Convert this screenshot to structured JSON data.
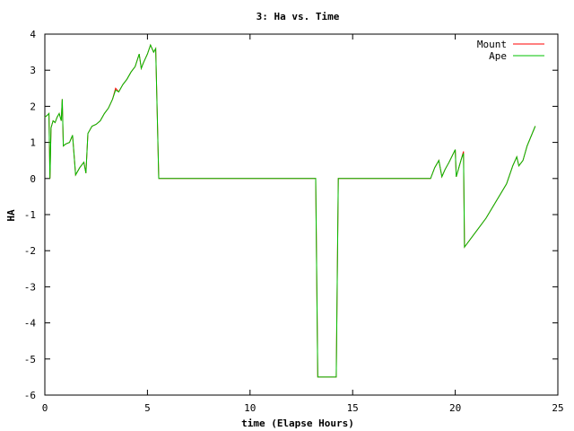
{
  "chart_data": {
    "type": "line",
    "title": "3: Ha vs. Time",
    "xlabel": "time (Elapse Hours)",
    "ylabel": "HA",
    "xlim": [
      0,
      25
    ],
    "ylim": [
      -6,
      4
    ],
    "xticks": [
      0,
      5,
      10,
      15,
      20,
      25
    ],
    "yticks": [
      4,
      3,
      2,
      1,
      0,
      -1,
      -2,
      -3,
      -4,
      -5,
      -6
    ],
    "grid": false,
    "legend_position": "top-right",
    "series": [
      {
        "name": "Mount",
        "color": "#ff0000",
        "points": [
          [
            0.0,
            1.7
          ],
          [
            0.12,
            1.75
          ],
          [
            0.2,
            1.8
          ],
          [
            0.25,
            0.0
          ],
          [
            0.3,
            1.4
          ],
          [
            0.35,
            1.5
          ],
          [
            0.4,
            1.6
          ],
          [
            0.5,
            1.55
          ],
          [
            0.6,
            1.7
          ],
          [
            0.7,
            1.8
          ],
          [
            0.8,
            1.6
          ],
          [
            0.85,
            2.2
          ],
          [
            0.9,
            0.9
          ],
          [
            1.0,
            0.95
          ],
          [
            1.2,
            1.0
          ],
          [
            1.35,
            1.2
          ],
          [
            1.5,
            0.1
          ],
          [
            1.7,
            0.3
          ],
          [
            1.9,
            0.45
          ],
          [
            2.0,
            0.15
          ],
          [
            2.1,
            1.25
          ],
          [
            2.3,
            1.45
          ],
          [
            2.5,
            1.5
          ],
          [
            2.7,
            1.6
          ],
          [
            2.9,
            1.8
          ],
          [
            3.1,
            1.95
          ],
          [
            3.3,
            2.2
          ],
          [
            3.45,
            2.5
          ],
          [
            3.6,
            2.4
          ],
          [
            3.8,
            2.6
          ],
          [
            4.0,
            2.75
          ],
          [
            4.2,
            2.95
          ],
          [
            4.4,
            3.1
          ],
          [
            4.6,
            3.45
          ],
          [
            4.7,
            3.05
          ],
          [
            4.8,
            3.2
          ],
          [
            5.0,
            3.45
          ],
          [
            5.15,
            3.7
          ],
          [
            5.3,
            3.5
          ],
          [
            5.4,
            3.6
          ],
          [
            5.55,
            0.0
          ],
          [
            13.2,
            0.0
          ],
          [
            13.3,
            -5.5
          ],
          [
            14.2,
            -5.5
          ],
          [
            14.3,
            0.0
          ],
          [
            18.8,
            0.0
          ],
          [
            19.0,
            0.3
          ],
          [
            19.2,
            0.5
          ],
          [
            19.35,
            0.05
          ],
          [
            19.5,
            0.25
          ],
          [
            19.7,
            0.45
          ],
          [
            20.0,
            0.8
          ],
          [
            20.05,
            0.05
          ],
          [
            20.15,
            0.25
          ],
          [
            20.3,
            0.55
          ],
          [
            20.4,
            0.75
          ],
          [
            20.45,
            -1.9
          ],
          [
            21.5,
            -1.1
          ],
          [
            22.5,
            -0.15
          ],
          [
            22.8,
            0.35
          ],
          [
            23.0,
            0.6
          ],
          [
            23.1,
            0.35
          ],
          [
            23.3,
            0.5
          ],
          [
            23.5,
            0.9
          ],
          [
            23.9,
            1.45
          ]
        ]
      },
      {
        "name": "Ape",
        "color": "#00c000",
        "points": [
          [
            0.0,
            1.7
          ],
          [
            0.12,
            1.75
          ],
          [
            0.2,
            1.8
          ],
          [
            0.25,
            0.0
          ],
          [
            0.3,
            1.4
          ],
          [
            0.35,
            1.5
          ],
          [
            0.4,
            1.6
          ],
          [
            0.5,
            1.55
          ],
          [
            0.6,
            1.7
          ],
          [
            0.7,
            1.8
          ],
          [
            0.8,
            1.6
          ],
          [
            0.85,
            2.2
          ],
          [
            0.9,
            0.9
          ],
          [
            1.0,
            0.95
          ],
          [
            1.2,
            1.0
          ],
          [
            1.35,
            1.2
          ],
          [
            1.5,
            0.1
          ],
          [
            1.7,
            0.3
          ],
          [
            1.9,
            0.45
          ],
          [
            2.0,
            0.15
          ],
          [
            2.1,
            1.25
          ],
          [
            2.3,
            1.45
          ],
          [
            2.5,
            1.5
          ],
          [
            2.7,
            1.6
          ],
          [
            2.9,
            1.8
          ],
          [
            3.1,
            1.95
          ],
          [
            3.3,
            2.2
          ],
          [
            3.45,
            2.45
          ],
          [
            3.6,
            2.4
          ],
          [
            3.8,
            2.6
          ],
          [
            4.0,
            2.75
          ],
          [
            4.2,
            2.95
          ],
          [
            4.4,
            3.1
          ],
          [
            4.6,
            3.45
          ],
          [
            4.7,
            3.05
          ],
          [
            4.8,
            3.2
          ],
          [
            5.0,
            3.45
          ],
          [
            5.15,
            3.7
          ],
          [
            5.3,
            3.5
          ],
          [
            5.4,
            3.6
          ],
          [
            5.55,
            0.0
          ],
          [
            13.2,
            0.0
          ],
          [
            13.3,
            -5.5
          ],
          [
            14.2,
            -5.5
          ],
          [
            14.3,
            0.0
          ],
          [
            18.8,
            0.0
          ],
          [
            19.0,
            0.3
          ],
          [
            19.2,
            0.5
          ],
          [
            19.35,
            0.05
          ],
          [
            19.5,
            0.25
          ],
          [
            19.7,
            0.45
          ],
          [
            20.0,
            0.8
          ],
          [
            20.05,
            0.05
          ],
          [
            20.15,
            0.25
          ],
          [
            20.3,
            0.55
          ],
          [
            20.4,
            0.7
          ],
          [
            20.45,
            -1.9
          ],
          [
            21.5,
            -1.1
          ],
          [
            22.5,
            -0.15
          ],
          [
            22.8,
            0.35
          ],
          [
            23.0,
            0.6
          ],
          [
            23.1,
            0.35
          ],
          [
            23.3,
            0.5
          ],
          [
            23.5,
            0.9
          ],
          [
            23.9,
            1.45
          ]
        ]
      }
    ]
  }
}
